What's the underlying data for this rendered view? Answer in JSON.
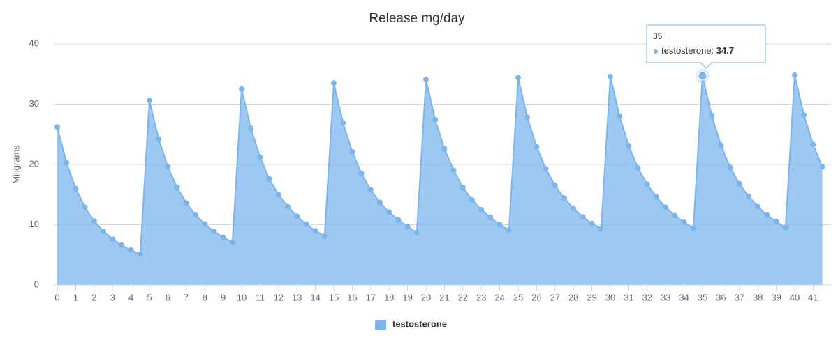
{
  "chart_data": {
    "type": "area",
    "title": "Release mg/day",
    "y_label": "Miligrams",
    "x": [
      0,
      0.5,
      1,
      1.5,
      2,
      2.5,
      3,
      3.5,
      4,
      4.5,
      5,
      5.5,
      6,
      6.5,
      7,
      7.5,
      8,
      8.5,
      9,
      9.5,
      10,
      10.5,
      11,
      11.5,
      12,
      12.5,
      13,
      13.5,
      14,
      14.5,
      15,
      15.5,
      16,
      16.5,
      17,
      17.5,
      18,
      18.5,
      19,
      19.5,
      20,
      20.5,
      21,
      21.5,
      22,
      22.5,
      23,
      23.5,
      24,
      24.5,
      25,
      25.5,
      26,
      26.5,
      27,
      27.5,
      28,
      28.5,
      29,
      29.5,
      30,
      30.5,
      31,
      31.5,
      32,
      32.5,
      33,
      33.5,
      34,
      34.5,
      35,
      35.5,
      36,
      36.5,
      37,
      37.5,
      38,
      38.5,
      39,
      39.5,
      40,
      40.5,
      41,
      41.5
    ],
    "series": [
      {
        "name": "testosterone",
        "color": "#7cb5ec",
        "values": [
          26.2,
          20.3,
          16.0,
          12.9,
          10.6,
          8.9,
          7.6,
          6.6,
          5.8,
          5.1,
          30.6,
          24.2,
          19.6,
          16.2,
          13.6,
          11.6,
          10.1,
          8.9,
          7.9,
          7.1,
          32.5,
          26.0,
          21.2,
          17.6,
          15.0,
          13.0,
          11.4,
          10.1,
          9.0,
          8.1,
          33.5,
          26.9,
          22.1,
          18.5,
          15.8,
          13.7,
          12.1,
          10.8,
          9.7,
          8.7,
          34.1,
          27.4,
          22.6,
          19.0,
          16.2,
          14.1,
          12.5,
          11.2,
          10.0,
          9.1,
          34.4,
          27.8,
          22.9,
          19.3,
          16.5,
          14.4,
          12.7,
          11.3,
          10.2,
          9.3,
          34.6,
          28.0,
          23.1,
          19.4,
          16.7,
          14.6,
          12.9,
          11.5,
          10.4,
          9.4,
          34.7,
          28.1,
          23.2,
          19.5,
          16.8,
          14.7,
          13.0,
          11.6,
          10.5,
          9.5,
          34.8,
          28.2,
          23.3,
          19.6
        ]
      }
    ],
    "xlim": [
      0,
      41.5
    ],
    "xticks": [
      0,
      1,
      2,
      3,
      4,
      5,
      6,
      7,
      8,
      9,
      10,
      11,
      12,
      13,
      14,
      15,
      16,
      17,
      18,
      19,
      20,
      21,
      22,
      23,
      24,
      25,
      26,
      27,
      28,
      29,
      30,
      31,
      32,
      33,
      34,
      35,
      36,
      37,
      38,
      39,
      40,
      41
    ],
    "ylim": [
      0,
      40
    ],
    "yticks": [
      0,
      10,
      20,
      30,
      40
    ],
    "grid": true
  }
}
